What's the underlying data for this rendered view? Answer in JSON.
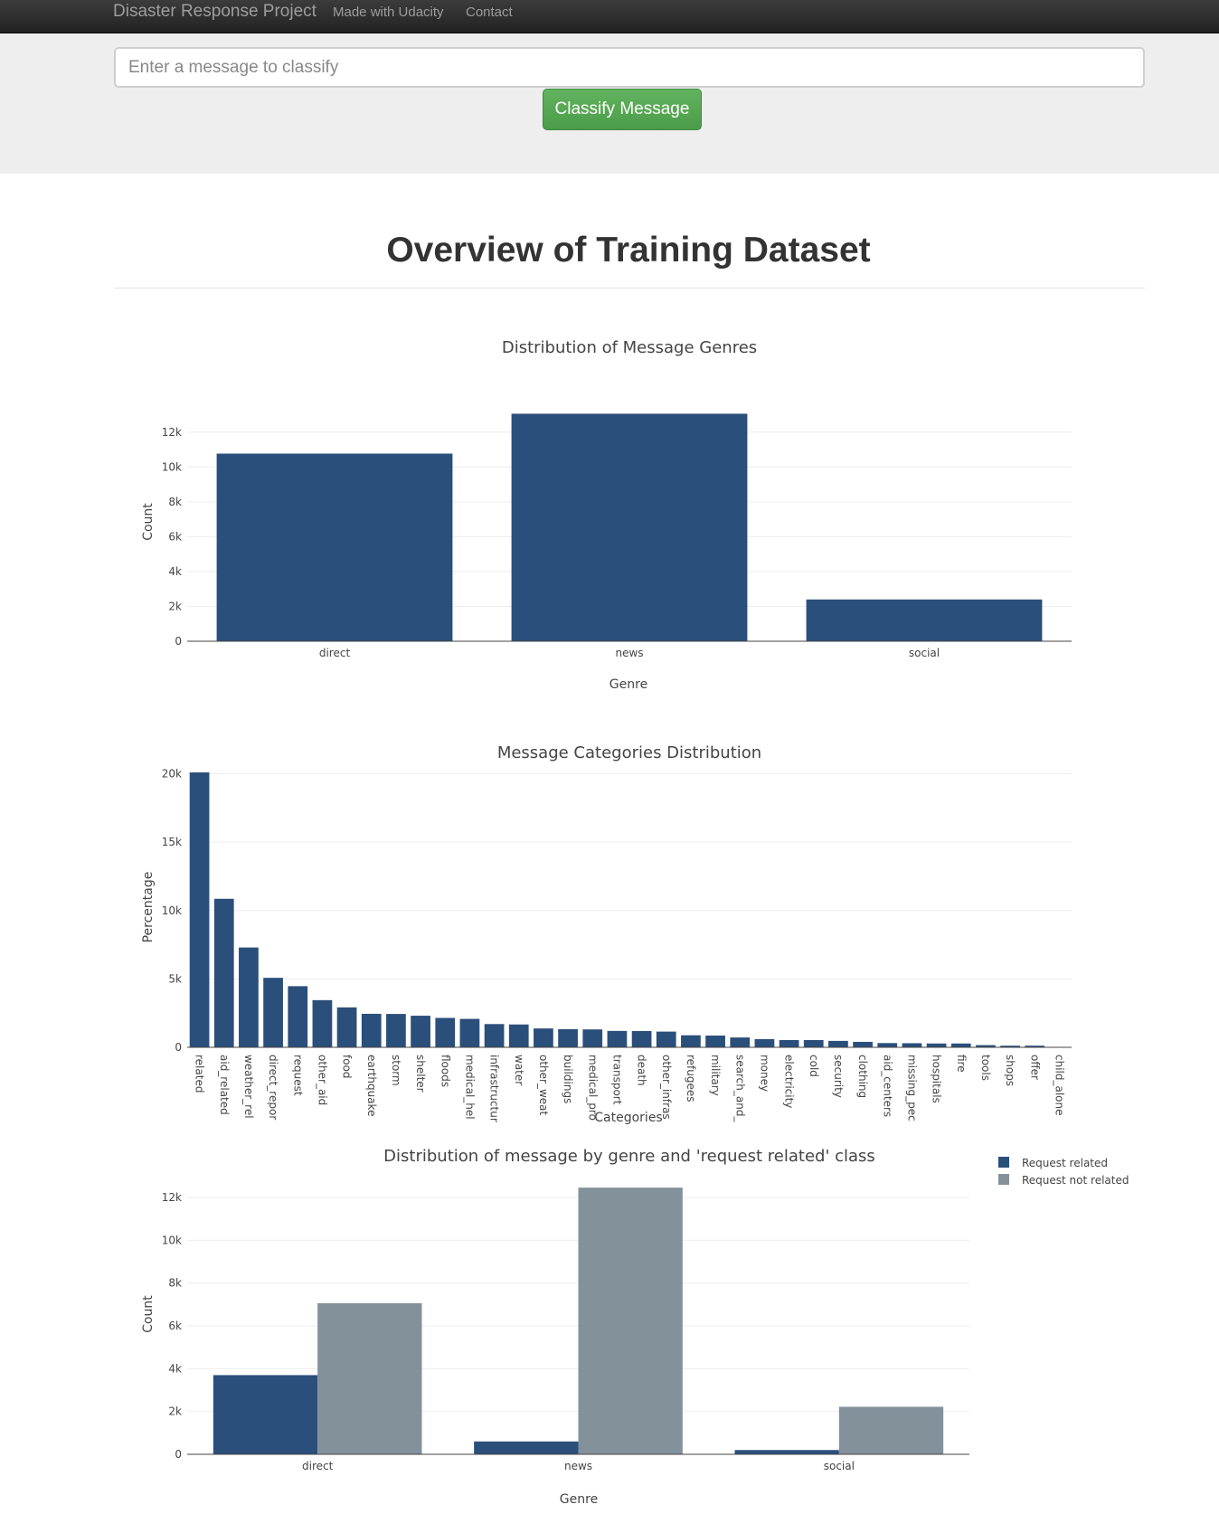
{
  "navbar": {
    "brand": "Disaster Response Project",
    "links": [
      "Made with Udacity",
      "Contact"
    ]
  },
  "classifier": {
    "placeholder": "Enter a message to classify",
    "button_label": "Classify Message"
  },
  "page": {
    "title": "Overview of Training Dataset"
  },
  "colors": {
    "bar": "#2b4f7b",
    "bar_secondary": "#83919b",
    "grid": "#eeeeee",
    "axis": "#444444"
  },
  "chart_data": [
    {
      "type": "bar",
      "title": "Distribution of Message Genres",
      "xlabel": "Genre",
      "ylabel": "Count",
      "categories": [
        "direct",
        "news",
        "social"
      ],
      "values": [
        10766,
        13054,
        2396
      ],
      "ylim": [
        0,
        13700
      ],
      "yticks": [
        0,
        2000,
        4000,
        6000,
        8000,
        10000,
        12000
      ],
      "ytick_labels": [
        "0",
        "2k",
        "4k",
        "6k",
        "8k",
        "10k",
        "12k"
      ],
      "grid": true
    },
    {
      "type": "bar",
      "title": "Message Categories Distribution",
      "xlabel": "Categories",
      "ylabel": "Percentage",
      "categories": [
        "related",
        "aid_related",
        "weather_rel",
        "direct_repor",
        "request",
        "other_aid",
        "food",
        "earthquake",
        "storm",
        "shelter",
        "floods",
        "medical_hel",
        "infrastructur",
        "water",
        "other_weat",
        "buildings",
        "medical_pro",
        "transport",
        "death",
        "other_infras",
        "refugees",
        "military",
        "search_and_",
        "money",
        "electricity",
        "cold",
        "security",
        "clothing",
        "aid_centers",
        "missing_pec",
        "hospitals",
        "fire",
        "tools",
        "shops",
        "offer",
        "child_alone"
      ],
      "values": [
        20100,
        10860,
        7300,
        5080,
        4470,
        3450,
        2920,
        2450,
        2440,
        2310,
        2150,
        2080,
        1700,
        1670,
        1380,
        1330,
        1310,
        1200,
        1190,
        1150,
        880,
        860,
        720,
        600,
        530,
        530,
        470,
        400,
        310,
        300,
        280,
        280,
        160,
        120,
        120,
        0
      ],
      "ylim": [
        0,
        20500
      ],
      "yticks": [
        0,
        5000,
        10000,
        15000,
        20000
      ],
      "ytick_labels": [
        "0",
        "5k",
        "10k",
        "15k",
        "20k"
      ],
      "grid": true
    },
    {
      "type": "bar",
      "title": "Distribution of message by genre and 'request related' class",
      "xlabel": "Genre",
      "ylabel": "Count",
      "categories": [
        "direct",
        "news",
        "social"
      ],
      "series": [
        {
          "name": "Request related",
          "values": [
            3700,
            600,
            200
          ]
        },
        {
          "name": "Request not related",
          "values": [
            7060,
            12460,
            2220
          ]
        }
      ],
      "ylim": [
        0,
        13100
      ],
      "yticks": [
        0,
        2000,
        4000,
        6000,
        8000,
        10000,
        12000
      ],
      "ytick_labels": [
        "0",
        "2k",
        "4k",
        "6k",
        "8k",
        "10k",
        "12k"
      ],
      "legend": "top-right",
      "grid": true
    }
  ]
}
